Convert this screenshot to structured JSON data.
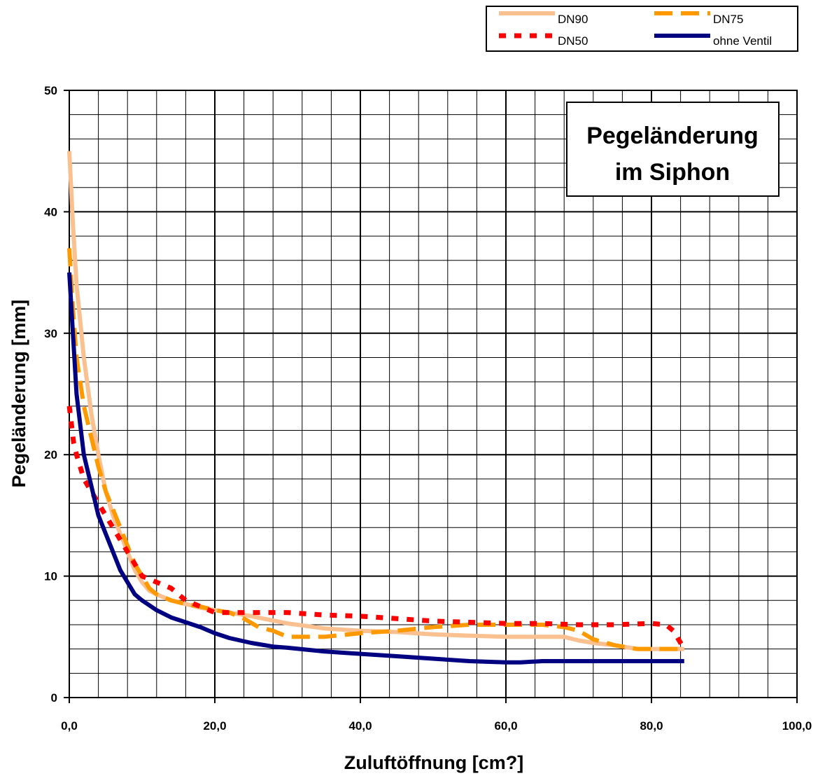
{
  "chart_data": {
    "type": "line",
    "title": [
      "Pegeländerung",
      "im Siphon"
    ],
    "xlabel": "Zuluftöffnung [cm?]",
    "ylabel": "Pegeländerung [mm]",
    "xlim": [
      0,
      100
    ],
    "ylim": [
      0,
      50
    ],
    "x_ticks": [
      0,
      20,
      40,
      60,
      80,
      100
    ],
    "x_tick_labels": [
      "0,0",
      "20,0",
      "40,0",
      "60,0",
      "80,0",
      "100,0"
    ],
    "y_ticks": [
      0,
      10,
      20,
      30,
      40,
      50
    ],
    "y_tick_labels": [
      "0",
      "10",
      "20",
      "30",
      "40",
      "50"
    ],
    "grid": true,
    "legend_position": "top-right",
    "series": [
      {
        "name": "DN90",
        "color": "#FAC090",
        "style": "solid",
        "x": [
          0,
          0.5,
          1,
          2,
          3,
          4,
          5,
          6,
          7,
          8,
          9,
          10,
          11,
          12,
          14,
          16,
          18,
          20,
          22,
          25,
          30,
          35,
          40,
          45,
          50,
          55,
          60,
          65,
          68,
          70,
          72,
          75,
          78,
          80,
          82,
          84.5
        ],
        "values": [
          45,
          39,
          34,
          28,
          23.5,
          20,
          17,
          15,
          13.5,
          12,
          10.5,
          9.5,
          8.8,
          8.5,
          8,
          7.7,
          7.4,
          7.2,
          7,
          6.7,
          6.1,
          5.7,
          5.5,
          5.4,
          5.2,
          5.1,
          5,
          5,
          5,
          4.7,
          4.5,
          4.3,
          4,
          4,
          4,
          4
        ]
      },
      {
        "name": "DN75",
        "color": "#FF9900",
        "style": "long-dash",
        "x": [
          0,
          0.5,
          1,
          2,
          3,
          4,
          5,
          6,
          7,
          8,
          9,
          10,
          11,
          12,
          14,
          16,
          18,
          20,
          22,
          24,
          26,
          28,
          30,
          35,
          40,
          45,
          50,
          55,
          60,
          65,
          68,
          70,
          72,
          75,
          78,
          80,
          84.5
        ],
        "values": [
          37,
          32,
          28,
          24,
          21.5,
          19,
          17,
          15.5,
          14,
          12.5,
          11,
          10,
          9,
          8.5,
          8,
          7.7,
          7.5,
          7.2,
          7,
          6.5,
          5.8,
          5.5,
          5,
          5,
          5.3,
          5.5,
          5.8,
          6,
          6,
          6,
          5.8,
          5.5,
          4.8,
          4.3,
          4,
          4,
          4
        ]
      },
      {
        "name": "DN50",
        "color": "#FF0000",
        "style": "dotted",
        "x": [
          0,
          0.3,
          0.6,
          1,
          2,
          3,
          4,
          5,
          6,
          7,
          8,
          9,
          10,
          12,
          14,
          16,
          18,
          20,
          22,
          24,
          26,
          30,
          35,
          40,
          45,
          50,
          55,
          60,
          65,
          70,
          75,
          80,
          82,
          83,
          84.5
        ],
        "values": [
          24,
          22.5,
          21,
          20,
          18,
          17,
          16,
          15,
          14,
          13,
          12,
          11,
          10,
          9.5,
          9,
          8,
          7.5,
          7,
          7,
          7,
          7,
          7,
          6.8,
          6.7,
          6.5,
          6.3,
          6.2,
          6.1,
          6.1,
          6,
          6,
          6.1,
          6,
          5.5,
          4
        ]
      },
      {
        "name": "ohne Ventil",
        "color": "#000080",
        "style": "solid",
        "x": [
          0,
          0.5,
          1,
          2,
          3,
          4,
          5,
          6,
          7,
          8,
          9,
          10,
          12,
          14,
          16,
          18,
          20,
          22,
          25,
          28,
          30,
          35,
          40,
          45,
          50,
          55,
          60,
          62,
          65,
          70,
          75,
          80,
          84.5
        ],
        "values": [
          35,
          30,
          25,
          20,
          17.5,
          15,
          13.5,
          12,
          10.5,
          9.5,
          8.5,
          8,
          7.2,
          6.6,
          6.2,
          5.8,
          5.3,
          4.9,
          4.5,
          4.2,
          4.1,
          3.8,
          3.6,
          3.4,
          3.2,
          3,
          2.9,
          2.9,
          3,
          3,
          3,
          3,
          3
        ]
      }
    ]
  }
}
